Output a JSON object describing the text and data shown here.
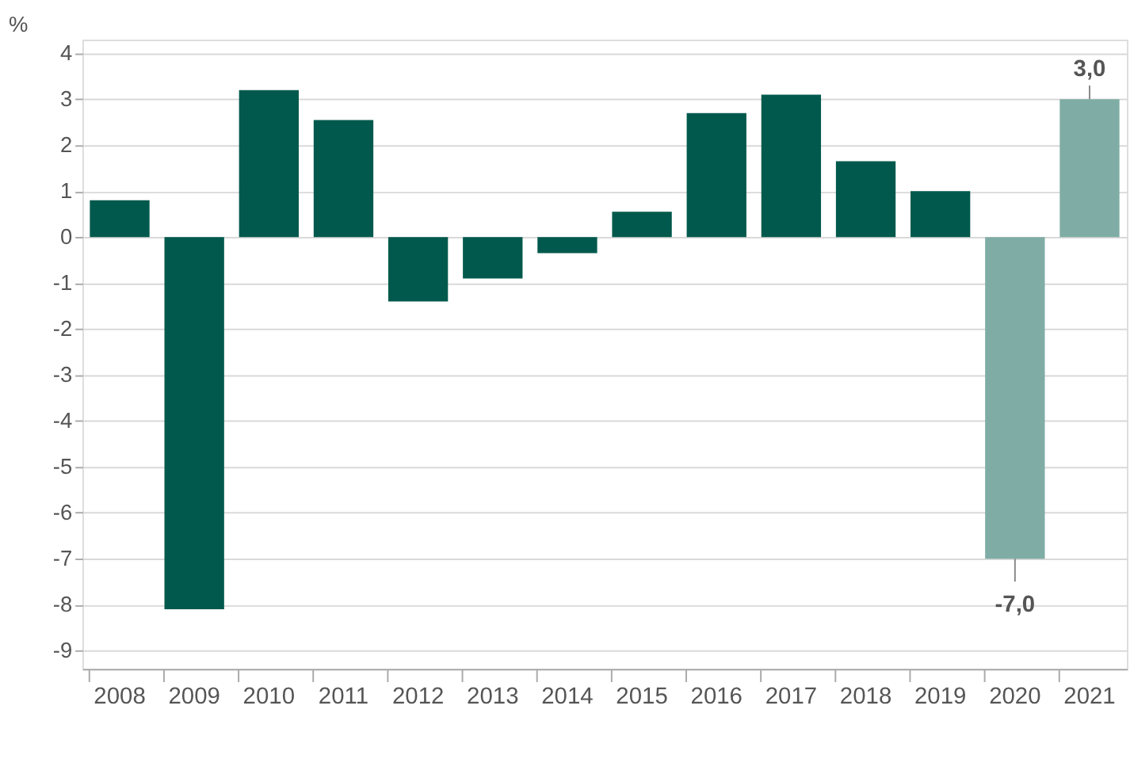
{
  "chart_data": {
    "type": "bar",
    "ylabel": "%",
    "categories": [
      "2008",
      "2009",
      "2010",
      "2011",
      "2012",
      "2013",
      "2014",
      "2015",
      "2016",
      "2017",
      "2018",
      "2019",
      "2020",
      "2021"
    ],
    "values": [
      0.8,
      -8.1,
      3.2,
      2.55,
      -1.4,
      -0.9,
      -0.35,
      0.55,
      2.7,
      3.1,
      1.65,
      1.0,
      -7.0,
      3.0
    ],
    "colors": [
      "#00594c",
      "#00594c",
      "#00594c",
      "#00594c",
      "#00594c",
      "#00594c",
      "#00594c",
      "#00594c",
      "#00594c",
      "#00594c",
      "#00594c",
      "#00594c",
      "#7fada5",
      "#7fada5"
    ],
    "value_labels": [
      null,
      null,
      null,
      null,
      null,
      null,
      null,
      null,
      null,
      null,
      null,
      null,
      "-7,0",
      "3,0"
    ],
    "ylim": [
      -9.4,
      4.3
    ],
    "yticks": [
      -9,
      -8,
      -7,
      -6,
      -5,
      -4,
      -3,
      -2,
      -1,
      0,
      1,
      2,
      3,
      4
    ],
    "grid": "y"
  }
}
